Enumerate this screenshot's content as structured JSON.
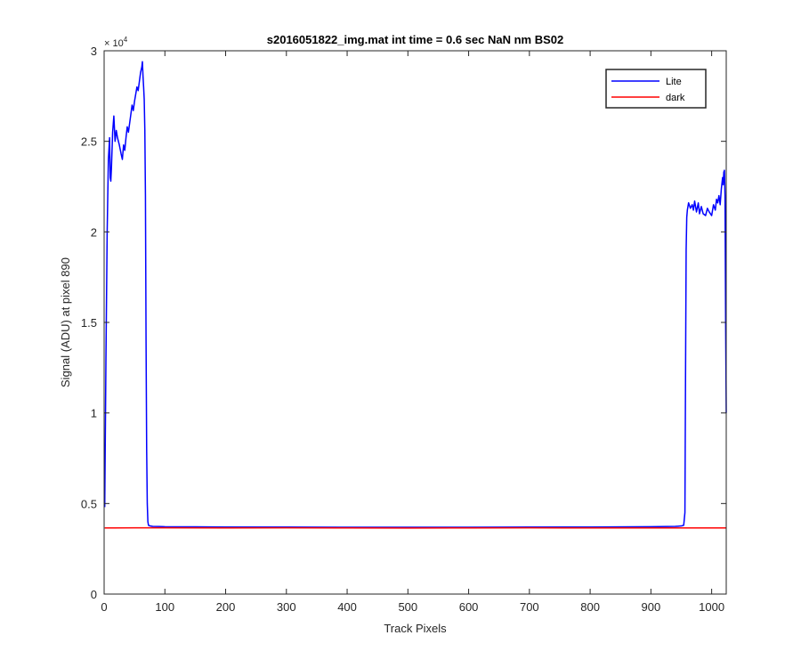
{
  "chart_data": {
    "type": "line",
    "title": "s2016051822_img.mat int time = 0.6 sec  NaN nm BS02",
    "xlabel": "Track Pixels",
    "ylabel": "Signal (ADU) at pixel 890",
    "xlim": [
      0,
      1024
    ],
    "ylim": [
      0,
      30000
    ],
    "y_exponent_label": "× 10",
    "y_exponent_power": "4",
    "x_ticks": [
      {
        "value": 0,
        "label": "0"
      },
      {
        "value": 100,
        "label": "100"
      },
      {
        "value": 200,
        "label": "200"
      },
      {
        "value": 300,
        "label": "300"
      },
      {
        "value": 400,
        "label": "400"
      },
      {
        "value": 500,
        "label": "500"
      },
      {
        "value": 600,
        "label": "600"
      },
      {
        "value": 700,
        "label": "700"
      },
      {
        "value": 800,
        "label": "800"
      },
      {
        "value": 900,
        "label": "900"
      },
      {
        "value": 1000,
        "label": "1000"
      }
    ],
    "y_ticks": [
      {
        "value": 0,
        "label": "0"
      },
      {
        "value": 5000,
        "label": "0.5"
      },
      {
        "value": 10000,
        "label": "1"
      },
      {
        "value": 15000,
        "label": "1.5"
      },
      {
        "value": 20000,
        "label": "2"
      },
      {
        "value": 25000,
        "label": "2.5"
      },
      {
        "value": 30000,
        "label": "3"
      }
    ],
    "grid": false,
    "legend_position": "top-right",
    "series": [
      {
        "name": "Lite",
        "color": "#0000ff",
        "x": [
          1,
          3,
          5,
          7,
          9,
          10,
          11,
          12,
          14,
          16,
          18,
          20,
          22,
          25,
          28,
          30,
          32,
          34,
          36,
          38,
          40,
          42,
          44,
          46,
          48,
          50,
          52,
          54,
          56,
          58,
          60,
          62,
          63,
          64,
          65,
          66,
          67,
          68,
          69,
          70,
          71,
          72,
          73,
          74,
          76,
          80,
          90,
          100,
          150,
          200,
          300,
          400,
          500,
          600,
          700,
          800,
          900,
          940,
          950,
          954,
          956,
          957,
          958,
          959,
          960,
          962,
          965,
          968,
          970,
          972,
          975,
          978,
          980,
          983,
          986,
          990,
          993,
          996,
          1000,
          1003,
          1006,
          1008,
          1010,
          1012,
          1014,
          1016,
          1018,
          1019,
          1020,
          1021,
          1022,
          1023,
          1024
        ],
        "y": [
          4800,
          13000,
          20000,
          24000,
          25200,
          23000,
          22800,
          23500,
          25500,
          26400,
          25000,
          25600,
          25200,
          24800,
          24300,
          24000,
          24800,
          24500,
          25200,
          25800,
          25500,
          26000,
          26500,
          27000,
          26700,
          27200,
          27600,
          28000,
          27800,
          28300,
          28800,
          29100,
          29400,
          28600,
          28000,
          27300,
          25600,
          22000,
          14000,
          8000,
          5000,
          4000,
          3800,
          3780,
          3760,
          3740,
          3730,
          3720,
          3710,
          3700,
          3700,
          3690,
          3690,
          3690,
          3700,
          3700,
          3720,
          3740,
          3760,
          3800,
          4500,
          12000,
          19000,
          20800,
          21200,
          21600,
          21300,
          21500,
          21200,
          21700,
          21100,
          21600,
          21000,
          21400,
          21000,
          20900,
          21300,
          21100,
          20900,
          21500,
          21200,
          21800,
          21600,
          22000,
          21500,
          22400,
          23000,
          22600,
          23300,
          23400,
          22000,
          15000,
          10000
        ]
      },
      {
        "name": "dark",
        "color": "#ff0000",
        "x": [
          1,
          50,
          100,
          200,
          300,
          400,
          500,
          600,
          700,
          800,
          900,
          1000,
          1024
        ],
        "y": [
          3650,
          3660,
          3660,
          3650,
          3655,
          3650,
          3645,
          3650,
          3655,
          3650,
          3650,
          3650,
          3650
        ]
      }
    ]
  }
}
